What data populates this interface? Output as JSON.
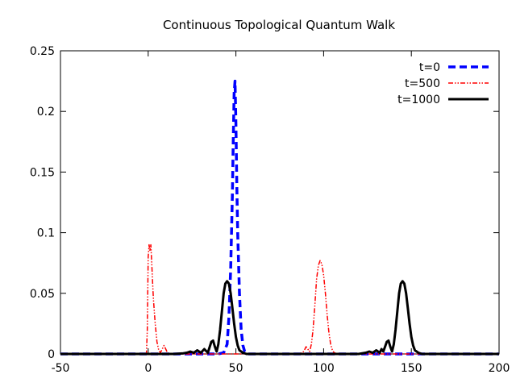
{
  "chart_data": {
    "type": "line",
    "title": "Continuous Topological Quantum Walk",
    "xlabel": "",
    "ylabel": "",
    "xlim": [
      -50,
      200
    ],
    "ylim": [
      0,
      0.25
    ],
    "x_ticks": [
      -50,
      0,
      50,
      100,
      150,
      200
    ],
    "x_tick_labels": [
      "-50",
      "0",
      "50",
      "100",
      "150",
      "200"
    ],
    "y_ticks": [
      0,
      0.05,
      0.1,
      0.15,
      0.2,
      0.25
    ],
    "y_tick_labels": [
      "0",
      "0.05",
      "0.1",
      "0.15",
      "0.2",
      "0.25"
    ],
    "grid": false,
    "legend_position": "top-right",
    "series": [
      {
        "name": "t=0",
        "color": "#0000ff",
        "style": "dashed",
        "x": [
          -50,
          40,
          43,
          45,
          46,
          47,
          48,
          48.5,
          49,
          49.5,
          50,
          50.5,
          51,
          52,
          53,
          54,
          55,
          57,
          60,
          200
        ],
        "y": [
          0,
          0,
          0.001,
          0.008,
          0.03,
          0.07,
          0.13,
          0.175,
          0.215,
          0.225,
          0.19,
          0.14,
          0.1,
          0.05,
          0.02,
          0.007,
          0.002,
          0,
          0,
          0
        ]
      },
      {
        "name": "t=500",
        "color": "#ff0000",
        "style": "dash-dot",
        "x": [
          -50,
          -2,
          -1,
          -0.5,
          0,
          0.5,
          1,
          1.5,
          2,
          2.5,
          3,
          4,
          5,
          6,
          7,
          8,
          9,
          10,
          11,
          12,
          14,
          30,
          85,
          88,
          89,
          90,
          91,
          92,
          93,
          94,
          95,
          96,
          97,
          98,
          99,
          100,
          101,
          102,
          103,
          104,
          105,
          106,
          108,
          110,
          200
        ],
        "y": [
          0,
          0,
          0,
          0.02,
          0.08,
          0.09,
          0.085,
          0.09,
          0.075,
          0.06,
          0.045,
          0.025,
          0.01,
          0.003,
          0.001,
          0.004,
          0.007,
          0.004,
          0.001,
          0,
          0,
          0,
          0,
          0.001,
          0.003,
          0.006,
          0.004,
          0.002,
          0.008,
          0.02,
          0.04,
          0.062,
          0.073,
          0.077,
          0.074,
          0.065,
          0.05,
          0.032,
          0.018,
          0.008,
          0.003,
          0.001,
          0,
          0,
          0
        ]
      },
      {
        "name": "t=1000",
        "color": "#000000",
        "style": "solid",
        "x": [
          -50,
          15,
          20,
          22,
          24,
          26,
          28,
          30,
          32,
          34,
          36,
          37,
          38,
          39,
          40,
          41,
          42,
          43,
          44,
          45,
          46,
          47,
          48,
          49,
          50,
          51,
          52,
          54,
          56,
          120,
          124,
          126,
          128,
          130,
          132,
          133,
          134,
          135,
          136,
          137,
          138,
          139,
          140,
          141,
          142,
          143,
          144,
          145,
          146,
          147,
          148,
          149,
          150,
          151,
          152,
          154,
          156,
          200
        ],
        "y": [
          0,
          0,
          0.0005,
          0.001,
          0.002,
          0.001,
          0.003,
          0.001,
          0.004,
          0.001,
          0.01,
          0.011,
          0.006,
          0.002,
          0.008,
          0.02,
          0.035,
          0.05,
          0.058,
          0.06,
          0.058,
          0.05,
          0.038,
          0.025,
          0.014,
          0.007,
          0.003,
          0.001,
          0,
          0,
          0.001,
          0.002,
          0.001,
          0.003,
          0.001,
          0.004,
          0.002,
          0.006,
          0.01,
          0.011,
          0.006,
          0.002,
          0.008,
          0.02,
          0.035,
          0.05,
          0.058,
          0.06,
          0.058,
          0.05,
          0.038,
          0.025,
          0.014,
          0.007,
          0.003,
          0.001,
          0,
          0
        ]
      }
    ]
  }
}
